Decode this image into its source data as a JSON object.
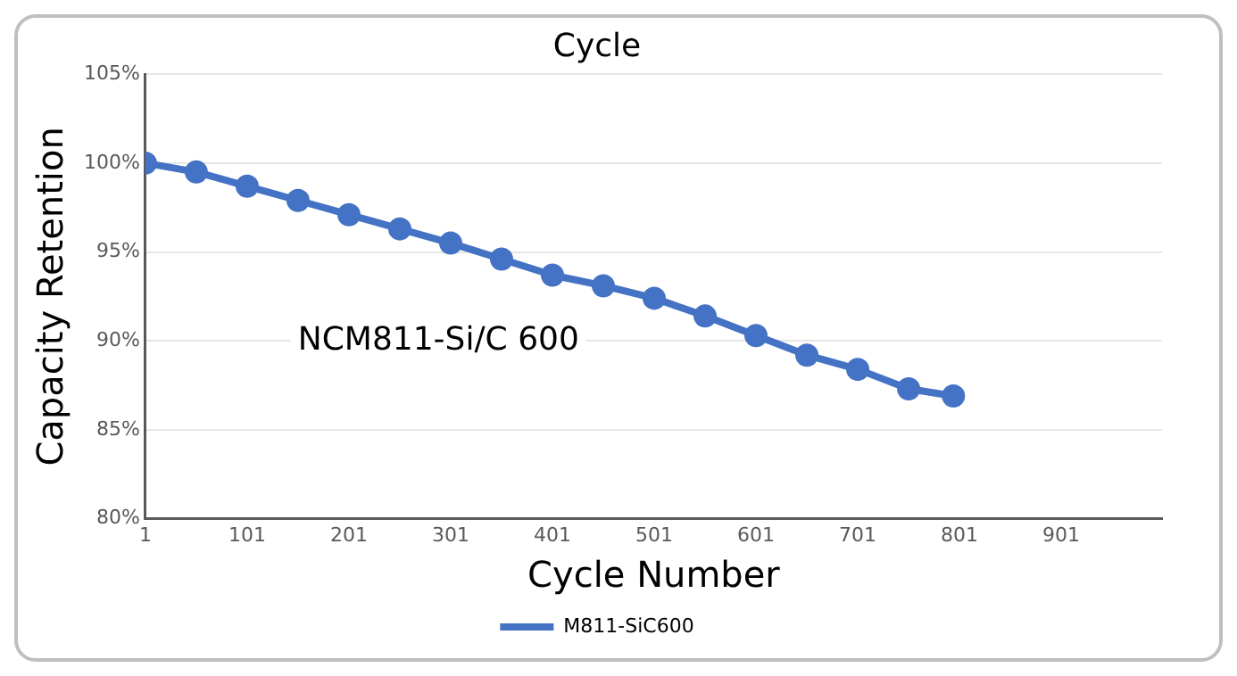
{
  "chart_data": {
    "type": "line",
    "title": "Cycle",
    "xlabel": "Cycle Number",
    "ylabel": "Capacity Retention",
    "annotations": [
      "NCM811-Si/C 600"
    ],
    "x": [
      1,
      51,
      101,
      151,
      201,
      251,
      301,
      351,
      401,
      451,
      501,
      551,
      601,
      651,
      701,
      751,
      795
    ],
    "series": [
      {
        "name": "M811-SiC600",
        "color": "#4472c4",
        "values": [
          100.0,
          99.5,
          98.7,
          97.9,
          97.1,
          96.3,
          95.5,
          94.6,
          93.7,
          93.1,
          92.4,
          91.4,
          90.3,
          89.2,
          88.4,
          87.3,
          86.9
        ]
      }
    ],
    "xlim": [
      1,
      1000
    ],
    "xticks": [
      1,
      101,
      201,
      301,
      401,
      501,
      601,
      701,
      801,
      901
    ],
    "ylim": [
      80,
      105
    ],
    "yticks": [
      {
        "value": 80,
        "label": "80%"
      },
      {
        "value": 85,
        "label": "85%"
      },
      {
        "value": 90,
        "label": "90%"
      },
      {
        "value": 95,
        "label": "95%"
      },
      {
        "value": 100,
        "label": "100%"
      },
      {
        "value": 105,
        "label": "105%"
      }
    ],
    "grid": "y",
    "legend": "bottom",
    "marker": "circle",
    "line_style": "solid"
  }
}
